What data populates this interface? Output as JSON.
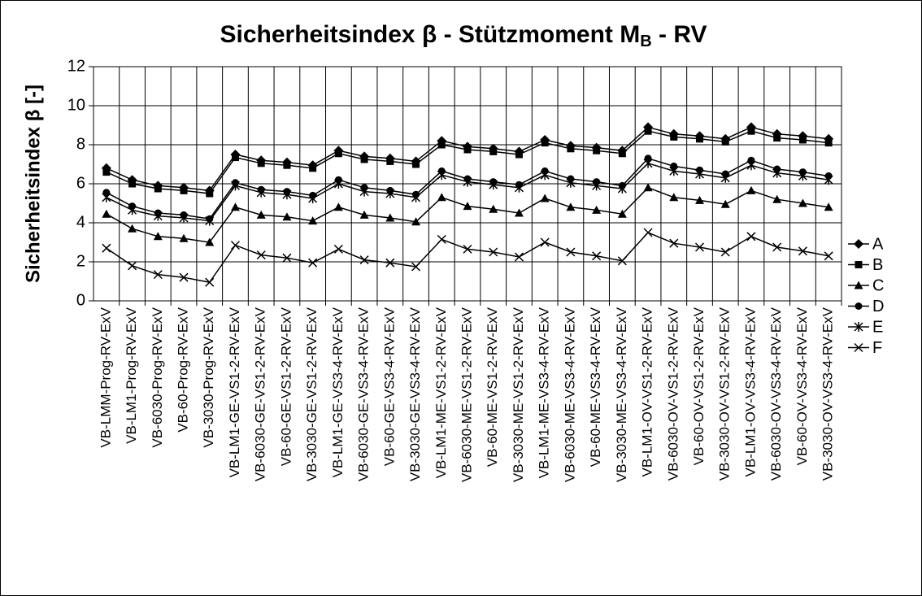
{
  "chart_data": {
    "type": "line",
    "title": [
      "Sicherheitsindex β - Stützmoment M",
      "B",
      " - RV"
    ],
    "y_label": "Sicherheitsindex β [-]",
    "categories": [
      "VB-LMM-Prog-RV-ExV",
      "VB-LM1-Prog-RV-ExV",
      "VB-6030-Prog-RV-ExV",
      "VB-60-Prog-RV-ExV",
      "VB-3030-Prog-RV-ExV",
      "VB-LM1-GE-VS1-2-RV-ExV",
      "VB-6030-GE-VS1-2-RV-ExV",
      "VB-60-GE-VS1-2-RV-ExV",
      "VB-3030-GE-VS1-2-RV-ExV",
      "VB-LM1-GE-VS3-4-RV-ExV",
      "VB-6030-GE-VS3-4-RV-ExV",
      "VB-60-GE-VS3-4-RV-ExV",
      "VB-3030-GE-VS3-4-RV-ExV",
      "VB-LM1-ME-VS1-2-RV-ExV",
      "VB-6030-ME-VS1-2-RV-ExV",
      "VB-60-ME-VS1-2-RV-ExV",
      "VB-3030-ME-VS1-2-RV-ExV",
      "VB-LM1-ME-VS3-4-RV-ExV",
      "VB-6030-ME-VS3-4-RV-ExV",
      "VB-60-ME-VS3-4-RV-ExV",
      "VB-3030-ME-VS3-4-RV-ExV",
      "VB-LM1-OV-VS1-2-RV-ExV",
      "VB-6030-OV-VS1-2-RV-ExV",
      "VB-60-OV-VS1-2-RV-ExV",
      "VB-3030-OV-VS1-2-RV-ExV",
      "VB-LM1-OV-VS3-4-RV-ExV",
      "VB-6030-OV-VS3-4-RV-ExV",
      "VB-60-OV-VS3-4-RV-ExV",
      "VB-3030-OV-VS3-4-RV-ExV"
    ],
    "series": [
      {
        "name": "A",
        "color": "#000000",
        "marker": "diamond",
        "values": [
          6.8,
          6.2,
          5.9,
          5.8,
          5.65,
          7.5,
          7.2,
          7.1,
          6.95,
          7.7,
          7.4,
          7.3,
          7.15,
          8.2,
          7.9,
          7.8,
          7.65,
          8.25,
          7.95,
          7.85,
          7.7,
          8.9,
          8.55,
          8.45,
          8.3,
          8.9,
          8.55,
          8.45,
          8.3
        ]
      },
      {
        "name": "B",
        "color": "#000000",
        "marker": "square",
        "values": [
          6.6,
          6.0,
          5.75,
          5.65,
          5.5,
          7.35,
          7.05,
          6.95,
          6.8,
          7.55,
          7.25,
          7.15,
          7.0,
          8.0,
          7.75,
          7.65,
          7.5,
          8.1,
          7.8,
          7.7,
          7.55,
          8.7,
          8.4,
          8.3,
          8.15,
          8.7,
          8.35,
          8.25,
          8.1
        ]
      },
      {
        "name": "C",
        "color": "#000000",
        "marker": "triangle",
        "values": [
          4.45,
          3.7,
          3.3,
          3.2,
          3.0,
          4.8,
          4.4,
          4.3,
          4.1,
          4.8,
          4.4,
          4.25,
          4.05,
          5.3,
          4.85,
          4.7,
          4.5,
          5.25,
          4.8,
          4.65,
          4.45,
          5.8,
          5.3,
          5.15,
          4.95,
          5.65,
          5.2,
          5.0,
          4.8
        ]
      },
      {
        "name": "D",
        "color": "#000000",
        "marker": "circle",
        "values": [
          5.55,
          4.85,
          4.5,
          4.4,
          4.2,
          6.05,
          5.7,
          5.6,
          5.4,
          6.2,
          5.8,
          5.65,
          5.45,
          6.65,
          6.25,
          6.1,
          5.95,
          6.65,
          6.25,
          6.1,
          5.9,
          7.3,
          6.9,
          6.7,
          6.5,
          7.2,
          6.75,
          6.6,
          6.4
        ]
      },
      {
        "name": "E",
        "color": "#000000",
        "marker": "star",
        "values": [
          5.3,
          4.65,
          4.35,
          4.25,
          4.1,
          5.9,
          5.55,
          5.45,
          5.25,
          6.0,
          5.6,
          5.5,
          5.3,
          6.45,
          6.1,
          5.95,
          5.8,
          6.45,
          6.05,
          5.9,
          5.75,
          7.05,
          6.65,
          6.5,
          6.3,
          6.95,
          6.55,
          6.4,
          6.2
        ]
      },
      {
        "name": "F",
        "color": "#000000",
        "marker": "x",
        "values": [
          2.7,
          1.8,
          1.35,
          1.2,
          0.95,
          2.85,
          2.35,
          2.2,
          1.95,
          2.65,
          2.1,
          1.95,
          1.75,
          3.15,
          2.65,
          2.5,
          2.25,
          3.0,
          2.5,
          2.3,
          2.05,
          3.5,
          2.95,
          2.75,
          2.5,
          3.3,
          2.75,
          2.55,
          2.3
        ]
      }
    ],
    "ylim": [
      0,
      12
    ],
    "yticks": [
      0,
      2,
      4,
      6,
      8,
      10,
      12
    ],
    "grid": true,
    "legend": "right"
  }
}
